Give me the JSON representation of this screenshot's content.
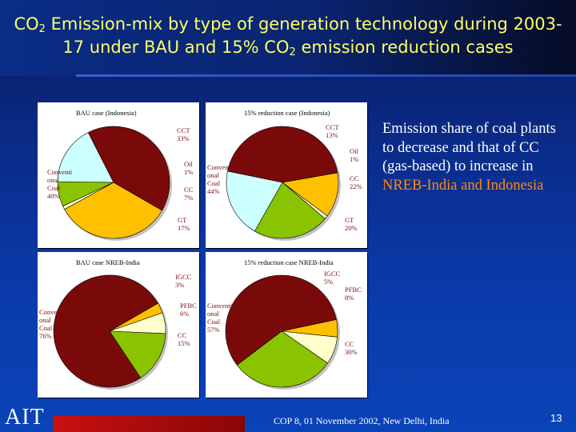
{
  "title": {
    "pre": "CO",
    "sub": "2",
    "mid": " Emission-mix by type of generation technology during 2003-",
    "line2_pre": "17 under BAU and 15% CO",
    "line2_sub": "2",
    "line2_post": " emission reduction cases"
  },
  "note": {
    "pre": "Emission share of coal plants to decrease and that of CC (gas-based) to increase in ",
    "highlight": "NREB-India and Indonesia"
  },
  "colors": {
    "coal": "#7a0a0a",
    "cct": "#ffc000",
    "oil": "#ffffcc",
    "cc": "#8ac400",
    "gt": "#ccffff",
    "igcc": "#ffc000",
    "pfbc": "#ffffcc",
    "highlight": "#ff8a14",
    "title": "#ffff66"
  },
  "chart_data": [
    {
      "type": "pie",
      "title": "BAU case (Indonesia)",
      "slices": [
        {
          "label": "CCT",
          "value_label": "33%",
          "value": 33,
          "color_key": "cct"
        },
        {
          "label": "Oil",
          "value_label": "1%",
          "value": 1,
          "color_key": "oil"
        },
        {
          "label": "CC",
          "value_label": "7%",
          "value": 7,
          "color_key": "cc"
        },
        {
          "label": "GT",
          "value_label": "17%",
          "value": 17,
          "color_key": "gt"
        },
        {
          "label": "Conventional Coal",
          "label_lines": [
            "Conventi",
            "onal",
            "Coal"
          ],
          "value_label": "40%",
          "value": 40,
          "color_key": "coal"
        }
      ]
    },
    {
      "type": "pie",
      "title": "15% reduction case (Indonesia)",
      "slices": [
        {
          "label": "CCT",
          "value_label": "13%",
          "value": 13,
          "color_key": "cct"
        },
        {
          "label": "Oil",
          "value_label": "1%",
          "value": 1,
          "color_key": "oil"
        },
        {
          "label": "CC",
          "value_label": "22%",
          "value": 22,
          "color_key": "cc"
        },
        {
          "label": "GT",
          "value_label": "20%",
          "value": 20,
          "color_key": "gt"
        },
        {
          "label": "Conventional Coal",
          "label_lines": [
            "Conventi",
            "onal",
            "Coal"
          ],
          "value_label": "44%",
          "value": 44,
          "color_key": "coal"
        }
      ]
    },
    {
      "type": "pie",
      "title": "BAU case NREB-India",
      "slices": [
        {
          "label": "IGCC",
          "value_label": "3%",
          "value": 3,
          "color_key": "igcc"
        },
        {
          "label": "PFBC",
          "value_label": "6%",
          "value": 6,
          "color_key": "pfbc"
        },
        {
          "label": "CC",
          "value_label": "15%",
          "value": 15,
          "color_key": "cc"
        },
        {
          "label": "Conventional Coal",
          "label_lines": [
            "Conventi",
            "onal",
            "Coal"
          ],
          "value_label": "76%",
          "value": 76,
          "color_key": "coal"
        }
      ]
    },
    {
      "type": "pie",
      "title": "15% reduction case NREB-India",
      "slices": [
        {
          "label": "IGCC",
          "value_label": "5%",
          "value": 5,
          "color_key": "igcc"
        },
        {
          "label": "PFBC",
          "value_label": "8%",
          "value": 8,
          "color_key": "pfbc"
        },
        {
          "label": "CC",
          "value_label": "30%",
          "value": 30,
          "color_key": "cc"
        },
        {
          "label": "Conventional Coal",
          "label_lines": [
            "Conventi",
            "onal",
            "Coal"
          ],
          "value_label": "57%",
          "value": 57,
          "color_key": "coal"
        }
      ]
    }
  ],
  "footer": {
    "logo": "AIT",
    "text": "COP 8, 01 November 2002, New Delhi, India",
    "page_number": "13"
  }
}
